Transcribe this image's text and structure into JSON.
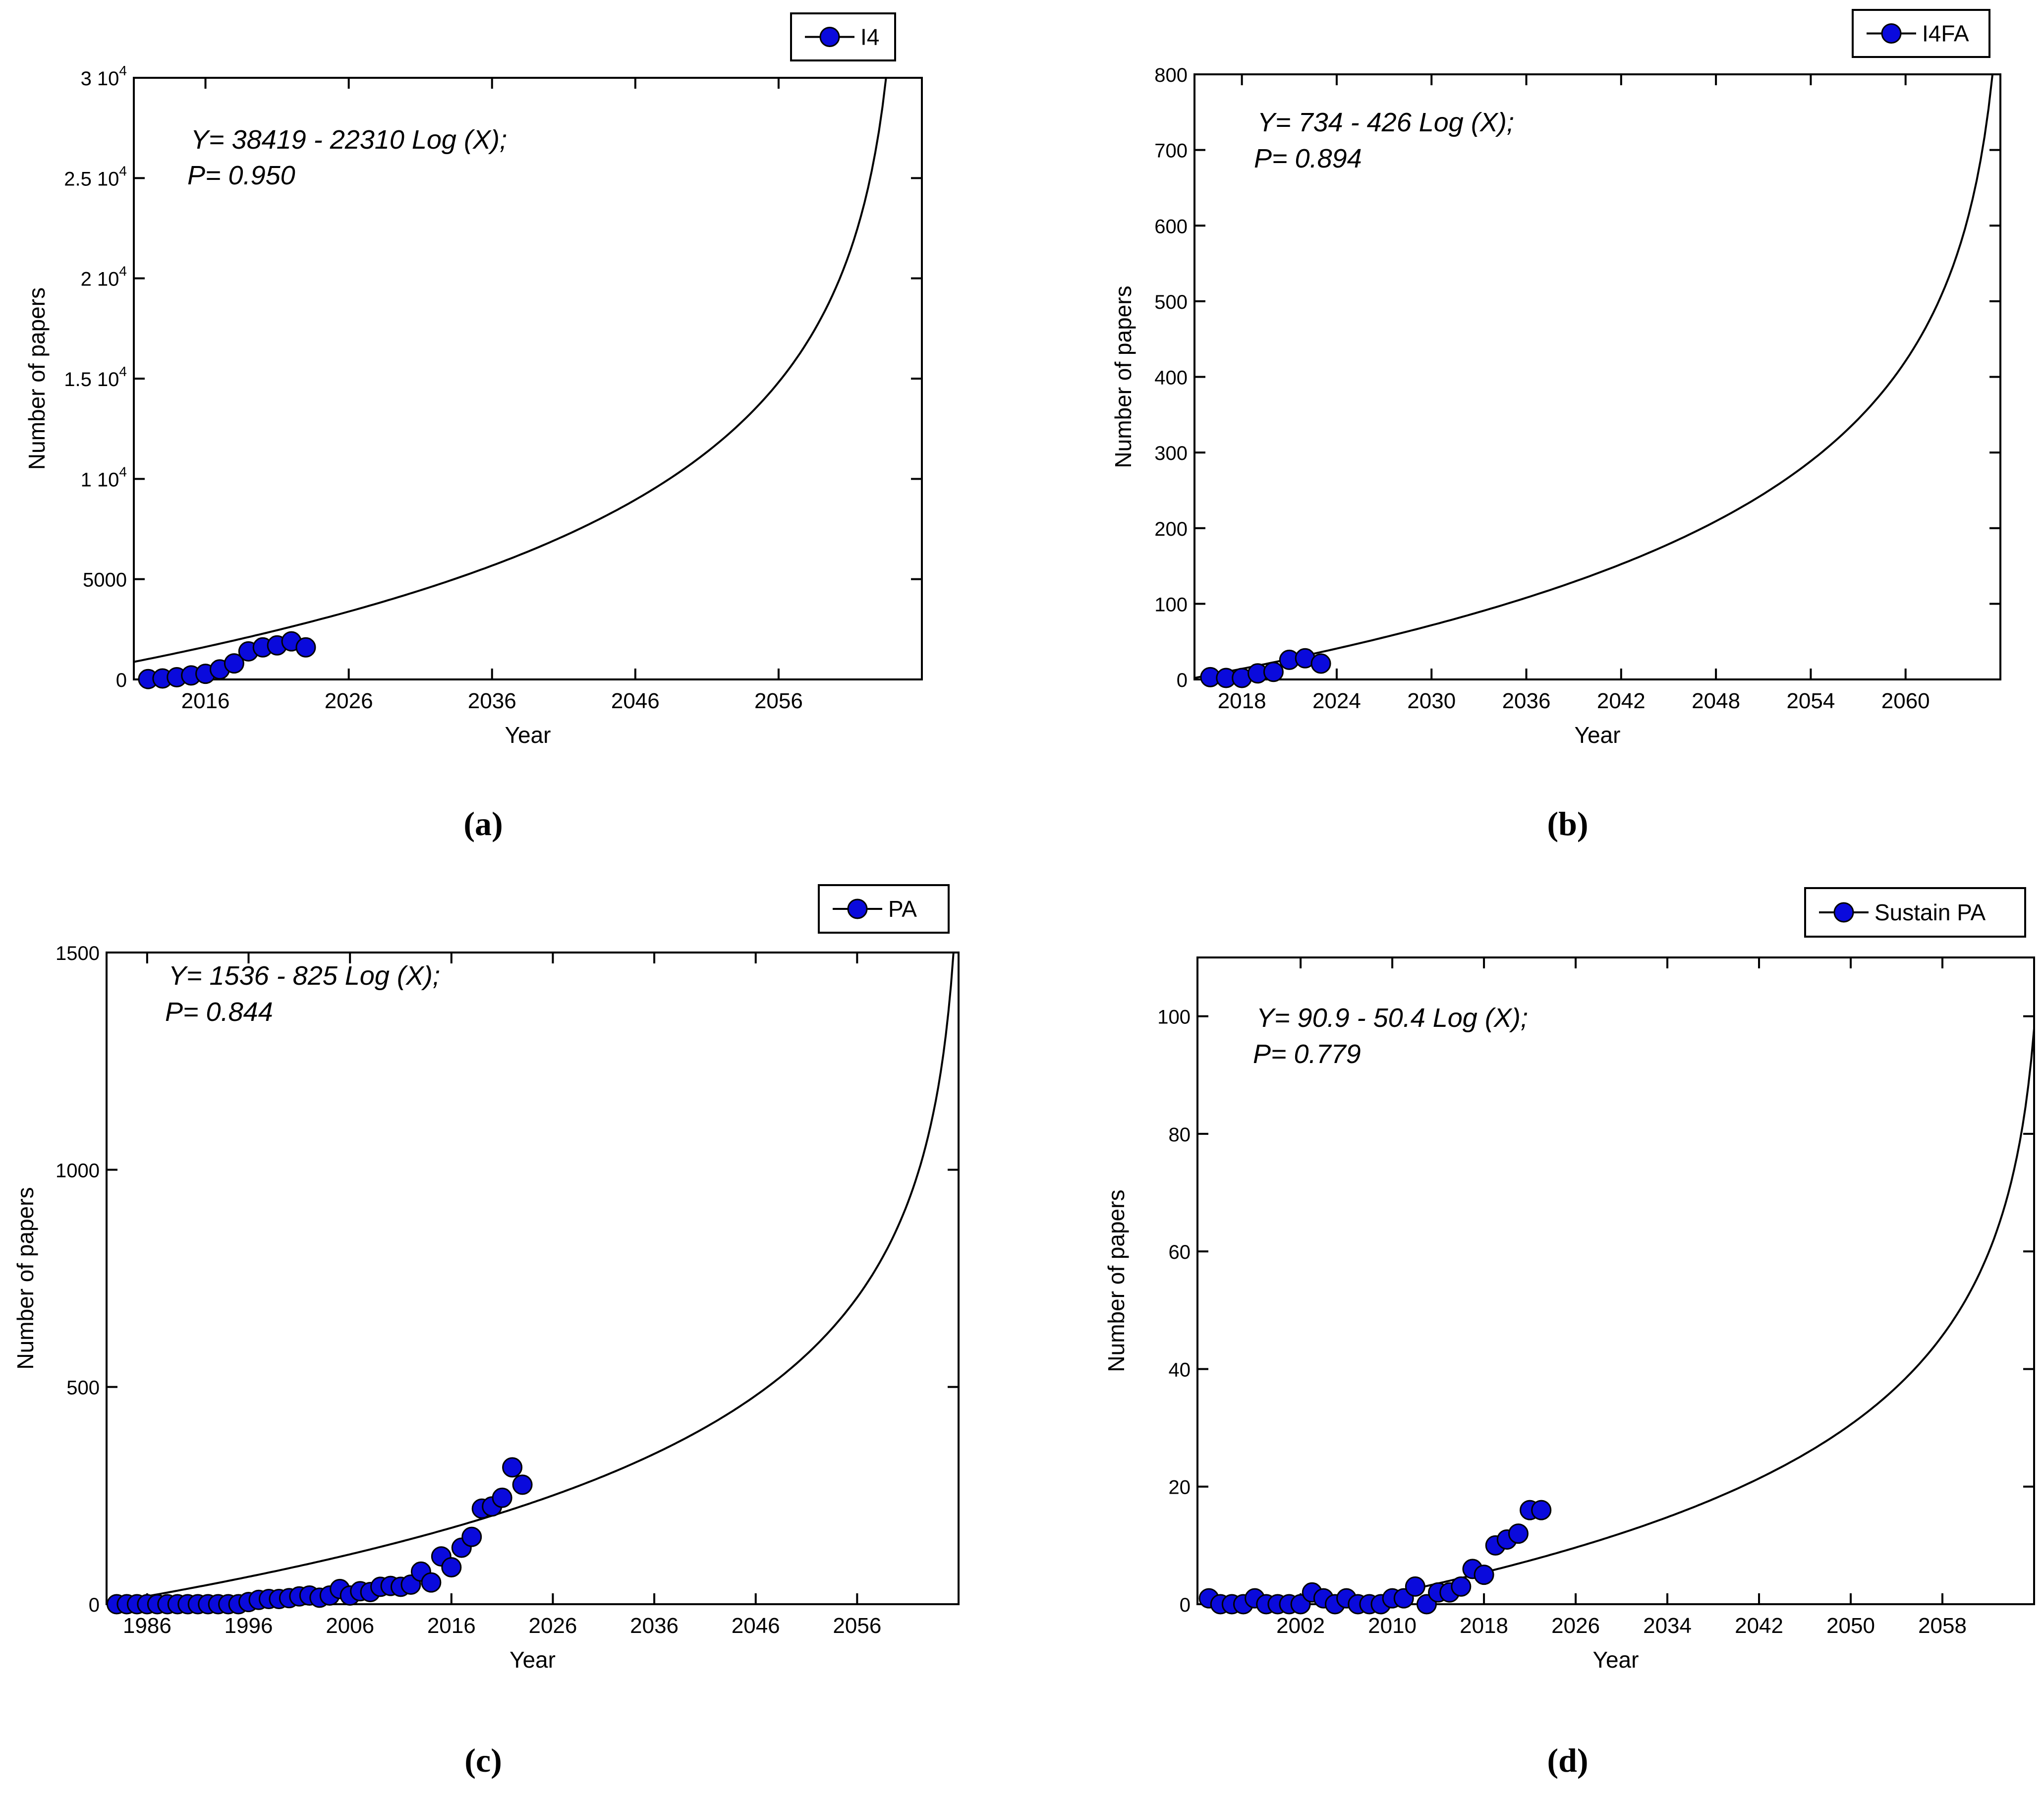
{
  "colors": {
    "marker_fill": "#0a0adc",
    "marker_stroke": "#000000",
    "curve": "#000000",
    "axis": "#000000",
    "background": "#ffffff"
  },
  "chart_data": [
    {
      "type": "scatter",
      "panel_label": "(a)",
      "legend": "I4",
      "legend_position": "top-right",
      "xlabel": "Year",
      "ylabel": "Number of papers",
      "xlim": [
        2011,
        2066
      ],
      "ylim": [
        0,
        30000
      ],
      "xticks": [
        2016,
        2026,
        2036,
        2046,
        2056
      ],
      "xtick_labels": [
        "2016",
        "2026",
        "2036",
        "2046",
        "2056"
      ],
      "yticks": [
        0,
        5000,
        10000,
        15000,
        20000,
        25000,
        30000
      ],
      "ytick_labels": [
        {
          "base": "0",
          "exp": ""
        },
        {
          "base": "5000",
          "exp": ""
        },
        {
          "base": "1 10",
          "exp": "4"
        },
        {
          "base": "1.5 10",
          "exp": "4"
        },
        {
          "base": "2 10",
          "exp": "4"
        },
        {
          "base": "2.5 10",
          "exp": "4"
        },
        {
          "base": "3 10",
          "exp": "4"
        }
      ],
      "equation": "Y= 38419 - 22310 Log (X);",
      "p_value": "P= 0.950",
      "fit": {
        "t0": 2004,
        "a": 38419,
        "b": 22310,
        "x_end": 2063.7
      },
      "series": [
        {
          "name": "I4",
          "x": [
            2012,
            2013,
            2014,
            2015,
            2016,
            2017,
            2018,
            2019,
            2020,
            2021,
            2022,
            2023
          ],
          "y": [
            20,
            50,
            110,
            200,
            280,
            500,
            800,
            1400,
            1600,
            1700,
            1900,
            1600
          ]
        }
      ]
    },
    {
      "type": "scatter",
      "panel_label": "(b)",
      "legend": "I4FA",
      "legend_position": "top-right",
      "xlabel": "Year",
      "ylabel": "Number of papers",
      "xlim": [
        2015,
        2066
      ],
      "ylim": [
        0,
        800
      ],
      "xticks": [
        2018,
        2024,
        2030,
        2036,
        2042,
        2048,
        2054,
        2060
      ],
      "xtick_labels": [
        "2018",
        "2024",
        "2030",
        "2036",
        "2042",
        "2048",
        "2054",
        "2060"
      ],
      "yticks": [
        0,
        100,
        200,
        300,
        400,
        500,
        600,
        700,
        800
      ],
      "ytick_labels": [
        {
          "base": "0",
          "exp": ""
        },
        {
          "base": "100",
          "exp": ""
        },
        {
          "base": "200",
          "exp": ""
        },
        {
          "base": "300",
          "exp": ""
        },
        {
          "base": "400",
          "exp": ""
        },
        {
          "base": "500",
          "exp": ""
        },
        {
          "base": "600",
          "exp": ""
        },
        {
          "base": "700",
          "exp": ""
        },
        {
          "base": "800",
          "exp": ""
        }
      ],
      "equation": "Y= 734 - 426 Log (X);",
      "p_value": "P= 0.894",
      "fit": {
        "t0": 2014,
        "a": 734,
        "b": 426,
        "x_end": 2065.5
      },
      "series": [
        {
          "name": "I4FA",
          "x": [
            2016,
            2017,
            2018,
            2019,
            2020,
            2021,
            2022,
            2023
          ],
          "y": [
            3,
            2,
            2,
            8,
            10,
            26,
            28,
            21
          ]
        }
      ]
    },
    {
      "type": "scatter",
      "panel_label": "(c)",
      "legend": "PA",
      "legend_position": "top-right",
      "xlabel": "Year",
      "ylabel": "Number of papers",
      "xlim": [
        1982,
        2066
      ],
      "ylim": [
        0,
        1500
      ],
      "xticks": [
        1986,
        1996,
        2006,
        2016,
        2026,
        2036,
        2046,
        2056
      ],
      "xtick_labels": [
        "1986",
        "1996",
        "2006",
        "2016",
        "2026",
        "2036",
        "2046",
        "2056"
      ],
      "yticks": [
        0,
        500,
        1000,
        1500
      ],
      "ytick_labels": [
        {
          "base": "0",
          "exp": ""
        },
        {
          "base": "500",
          "exp": ""
        },
        {
          "base": "1000",
          "exp": ""
        },
        {
          "base": "1500",
          "exp": ""
        }
      ],
      "equation": "Y= 1536 - 825 Log (X);",
      "p_value": "P= 0.844",
      "fit": {
        "t0": 1981,
        "a": 1536,
        "b": 825,
        "x_end": 2065.5
      },
      "series": [
        {
          "name": "PA",
          "x": [
            1983,
            1984,
            1985,
            1986,
            1987,
            1988,
            1989,
            1990,
            1991,
            1992,
            1993,
            1994,
            1995,
            1996,
            1997,
            1998,
            1999,
            2000,
            2001,
            2002,
            2003,
            2004,
            2005,
            2006,
            2007,
            2008,
            2009,
            2010,
            2011,
            2012,
            2013,
            2014,
            2015,
            2016,
            2017,
            2018,
            2019,
            2020,
            2021,
            2022,
            2023
          ],
          "y": [
            0,
            0,
            0,
            0,
            0,
            0,
            0,
            0,
            0,
            0,
            0,
            0,
            0,
            5,
            10,
            12,
            12,
            14,
            18,
            20,
            15,
            20,
            35,
            20,
            30,
            28,
            40,
            42,
            40,
            45,
            75,
            50,
            110,
            85,
            130,
            155,
            220,
            225,
            245,
            315,
            275
          ]
        }
      ]
    },
    {
      "type": "scatter",
      "panel_label": "(d)",
      "legend": "Sustain PA",
      "legend_position": "top-right",
      "xlabel": "Year",
      "ylabel": "Number of papers",
      "xlim": [
        1993,
        2066
      ],
      "ylim": [
        0,
        110
      ],
      "xticks": [
        2002,
        2010,
        2018,
        2026,
        2034,
        2042,
        2050,
        2058
      ],
      "xtick_labels": [
        "2002",
        "2010",
        "2018",
        "2026",
        "2034",
        "2042",
        "2050",
        "2058"
      ],
      "yticks": [
        0,
        20,
        40,
        60,
        80,
        100
      ],
      "ytick_labels": [
        {
          "base": "0",
          "exp": ""
        },
        {
          "base": "20",
          "exp": ""
        },
        {
          "base": "40",
          "exp": ""
        },
        {
          "base": "60",
          "exp": ""
        },
        {
          "base": "80",
          "exp": ""
        },
        {
          "base": "100",
          "exp": ""
        }
      ],
      "equation": "Y= 90.9 - 50.4 Log (X);",
      "p_value": "P= 0.779",
      "fit": {
        "t0": 2005,
        "a": 90.9,
        "b": 50.4,
        "x_end": 2066
      },
      "series": [
        {
          "name": "Sustain PA",
          "x": [
            1994,
            1995,
            1996,
            1997,
            1998,
            1999,
            2000,
            2001,
            2002,
            2003,
            2004,
            2005,
            2006,
            2007,
            2008,
            2009,
            2010,
            2011,
            2012,
            2013,
            2014,
            2015,
            2016,
            2017,
            2018,
            2019,
            2020,
            2021,
            2022,
            2023
          ],
          "y": [
            1,
            0,
            0,
            0,
            1,
            0,
            0,
            0,
            0,
            2,
            1,
            0,
            1,
            0,
            0,
            0,
            1,
            1,
            3,
            0,
            2,
            2,
            3,
            6,
            5,
            10,
            11,
            12,
            16,
            16
          ]
        }
      ]
    }
  ]
}
